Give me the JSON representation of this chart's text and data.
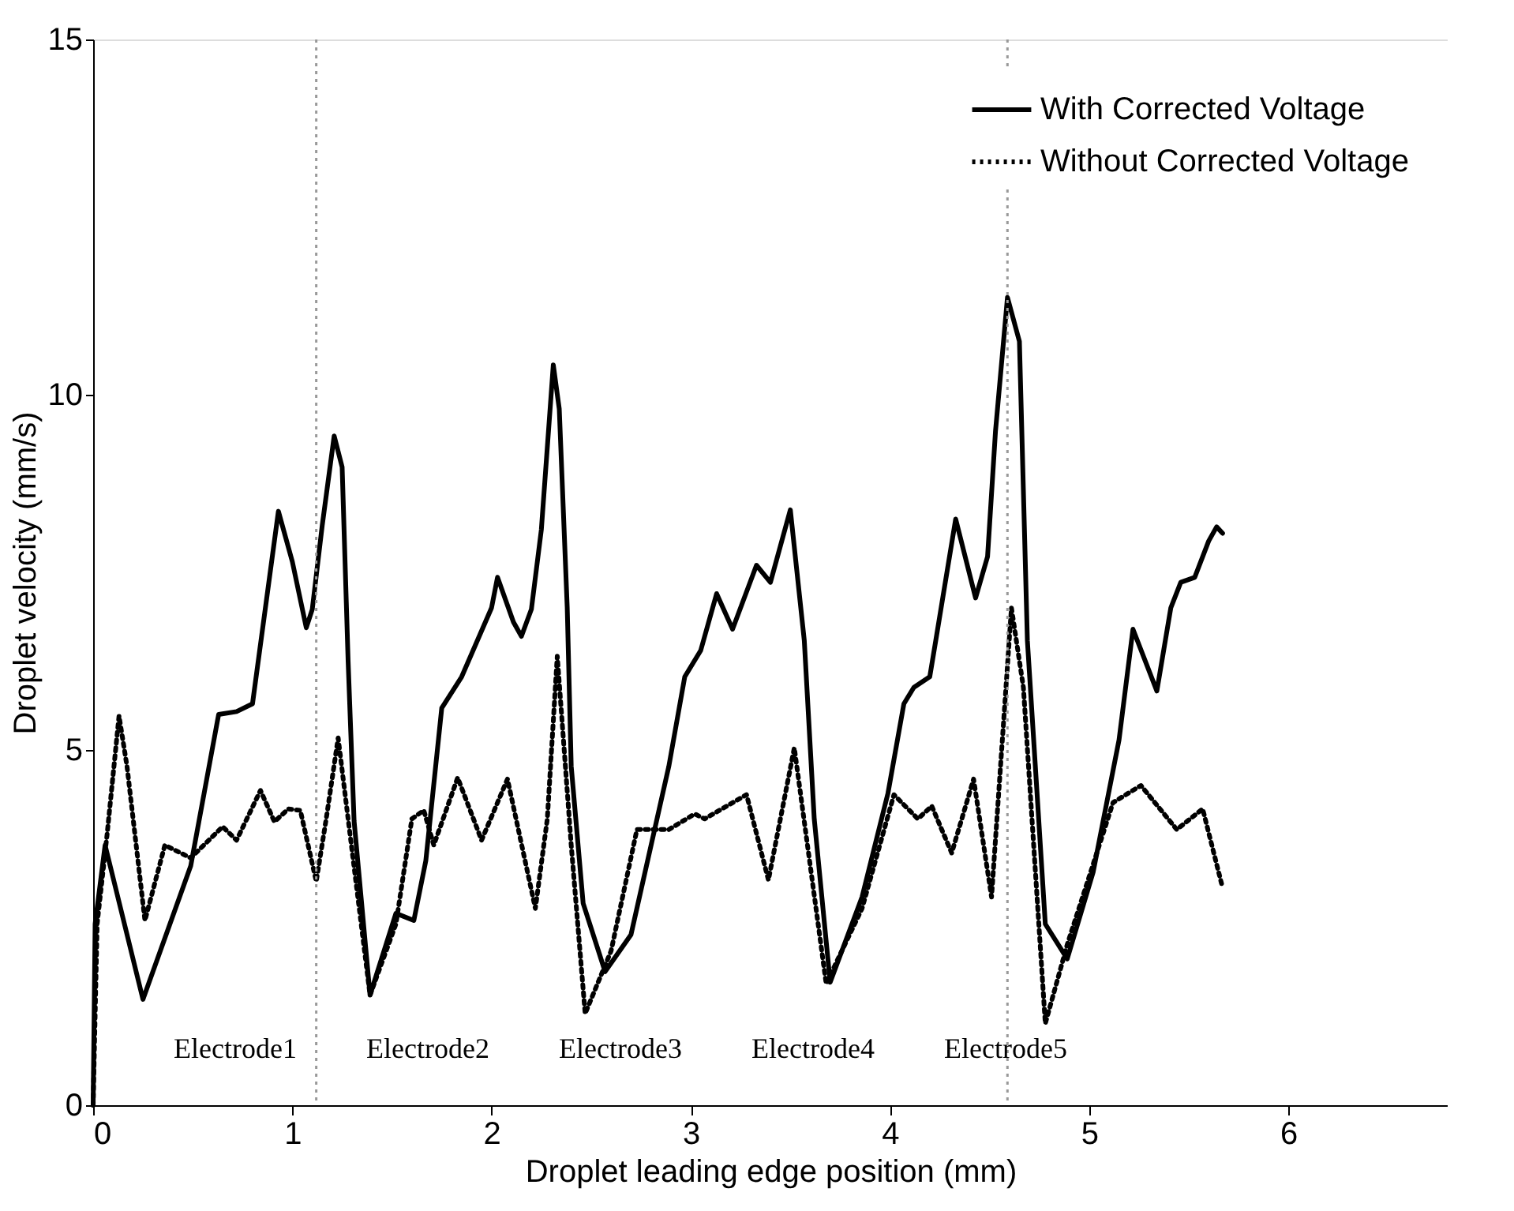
{
  "chart_data": {
    "type": "line",
    "xlabel": "Droplet leading edge position (mm)",
    "ylabel": "Droplet velocity (mm/s)",
    "xlim": [
      0,
      6.8
    ],
    "xticks": [
      0,
      1,
      2,
      3,
      4,
      5,
      6
    ],
    "ylim": [
      0,
      15
    ],
    "yticks": [
      0,
      5,
      10,
      15
    ],
    "grid": false,
    "legend": "top right",
    "series": [
      {
        "name": "With Corrected Voltage",
        "color": "#000000",
        "line_style": "solid",
        "x": [
          0,
          0.01,
          0.06,
          0.25,
          0.49,
          0.63,
          0.72,
          0.8,
          0.93,
          1.0,
          1.07,
          1.1,
          1.15,
          1.21,
          1.25,
          1.28,
          1.31,
          1.39,
          1.52,
          1.61,
          1.67,
          1.75,
          1.85,
          2.0,
          2.03,
          2.11,
          2.15,
          2.2,
          2.25,
          2.31,
          2.34,
          2.38,
          2.4,
          2.46,
          2.57,
          2.7,
          2.89,
          2.97,
          3.05,
          3.13,
          3.21,
          3.33,
          3.4,
          3.5,
          3.57,
          3.62,
          3.7,
          3.86,
          3.99,
          4.07,
          4.12,
          4.2,
          4.23,
          4.33,
          4.43,
          4.49,
          4.53,
          4.59,
          4.65,
          4.69,
          4.73,
          4.78,
          4.89,
          5.02,
          5.15,
          5.22,
          5.34,
          5.41,
          5.46,
          5.53,
          5.6,
          5.64,
          5.67
        ],
        "values": [
          0,
          2.55,
          3.66,
          1.49,
          3.37,
          5.5,
          5.54,
          5.65,
          8.36,
          7.65,
          6.72,
          6.98,
          8.16,
          9.42,
          8.98,
          6.25,
          4.0,
          1.55,
          2.7,
          2.6,
          3.44,
          5.59,
          6.03,
          7.0,
          7.43,
          6.8,
          6.6,
          6.98,
          8.1,
          10.42,
          9.8,
          7.0,
          4.77,
          2.84,
          1.88,
          2.4,
          4.77,
          6.03,
          6.4,
          7.2,
          6.7,
          7.6,
          7.36,
          8.38,
          6.54,
          4.03,
          1.73,
          2.93,
          4.39,
          5.65,
          5.88,
          6.03,
          6.54,
          8.25,
          7.14,
          7.72,
          9.49,
          11.37,
          10.75,
          6.54,
          4.77,
          2.55,
          2.06,
          3.28,
          5.14,
          6.7,
          5.83,
          7.0,
          7.36,
          7.43,
          7.94,
          8.14,
          8.05
        ]
      },
      {
        "name": "Without Corrected Voltage",
        "color": "#000000",
        "line_style": "dotted",
        "x": [
          0,
          0.02,
          0.07,
          0.13,
          0.17,
          0.26,
          0.36,
          0.49,
          0.65,
          0.72,
          0.84,
          0.91,
          0.98,
          1.04,
          1.12,
          1.17,
          1.23,
          1.28,
          1.39,
          1.52,
          1.6,
          1.66,
          1.71,
          1.83,
          1.95,
          2.08,
          2.22,
          2.28,
          2.33,
          2.4,
          2.47,
          2.6,
          2.73,
          2.89,
          3.02,
          3.07,
          3.28,
          3.39,
          3.52,
          3.68,
          3.86,
          4.02,
          4.14,
          4.21,
          4.31,
          4.42,
          4.51,
          4.61,
          4.67,
          4.78,
          4.89,
          5.12,
          5.26,
          5.44,
          5.57,
          5.67
        ],
        "values": [
          0,
          2.55,
          3.81,
          5.48,
          4.77,
          2.6,
          3.66,
          3.48,
          3.92,
          3.73,
          4.43,
          3.99,
          4.17,
          4.15,
          3.15,
          4.03,
          5.17,
          4.03,
          1.55,
          2.55,
          4.03,
          4.15,
          3.66,
          4.61,
          3.73,
          4.59,
          2.77,
          4.03,
          6.32,
          3.66,
          1.29,
          2.17,
          3.88,
          3.88,
          4.1,
          4.03,
          4.37,
          3.17,
          5.03,
          1.71,
          2.77,
          4.37,
          4.03,
          4.21,
          3.55,
          4.59,
          2.93,
          7.0,
          5.88,
          1.15,
          2.26,
          4.26,
          4.5,
          3.88,
          4.17,
          3.06
        ]
      }
    ],
    "ref_lines": [
      {
        "axis": "x",
        "value": 1.12,
        "color": "#999999",
        "line_style": "dotted"
      },
      {
        "axis": "x",
        "value": 4.59,
        "color": "#999999",
        "line_style": "dotted"
      }
    ],
    "annotations": [
      "Electrode1",
      "Electrode2",
      "Electrode3",
      "Electrode4",
      "Electrode5"
    ]
  }
}
